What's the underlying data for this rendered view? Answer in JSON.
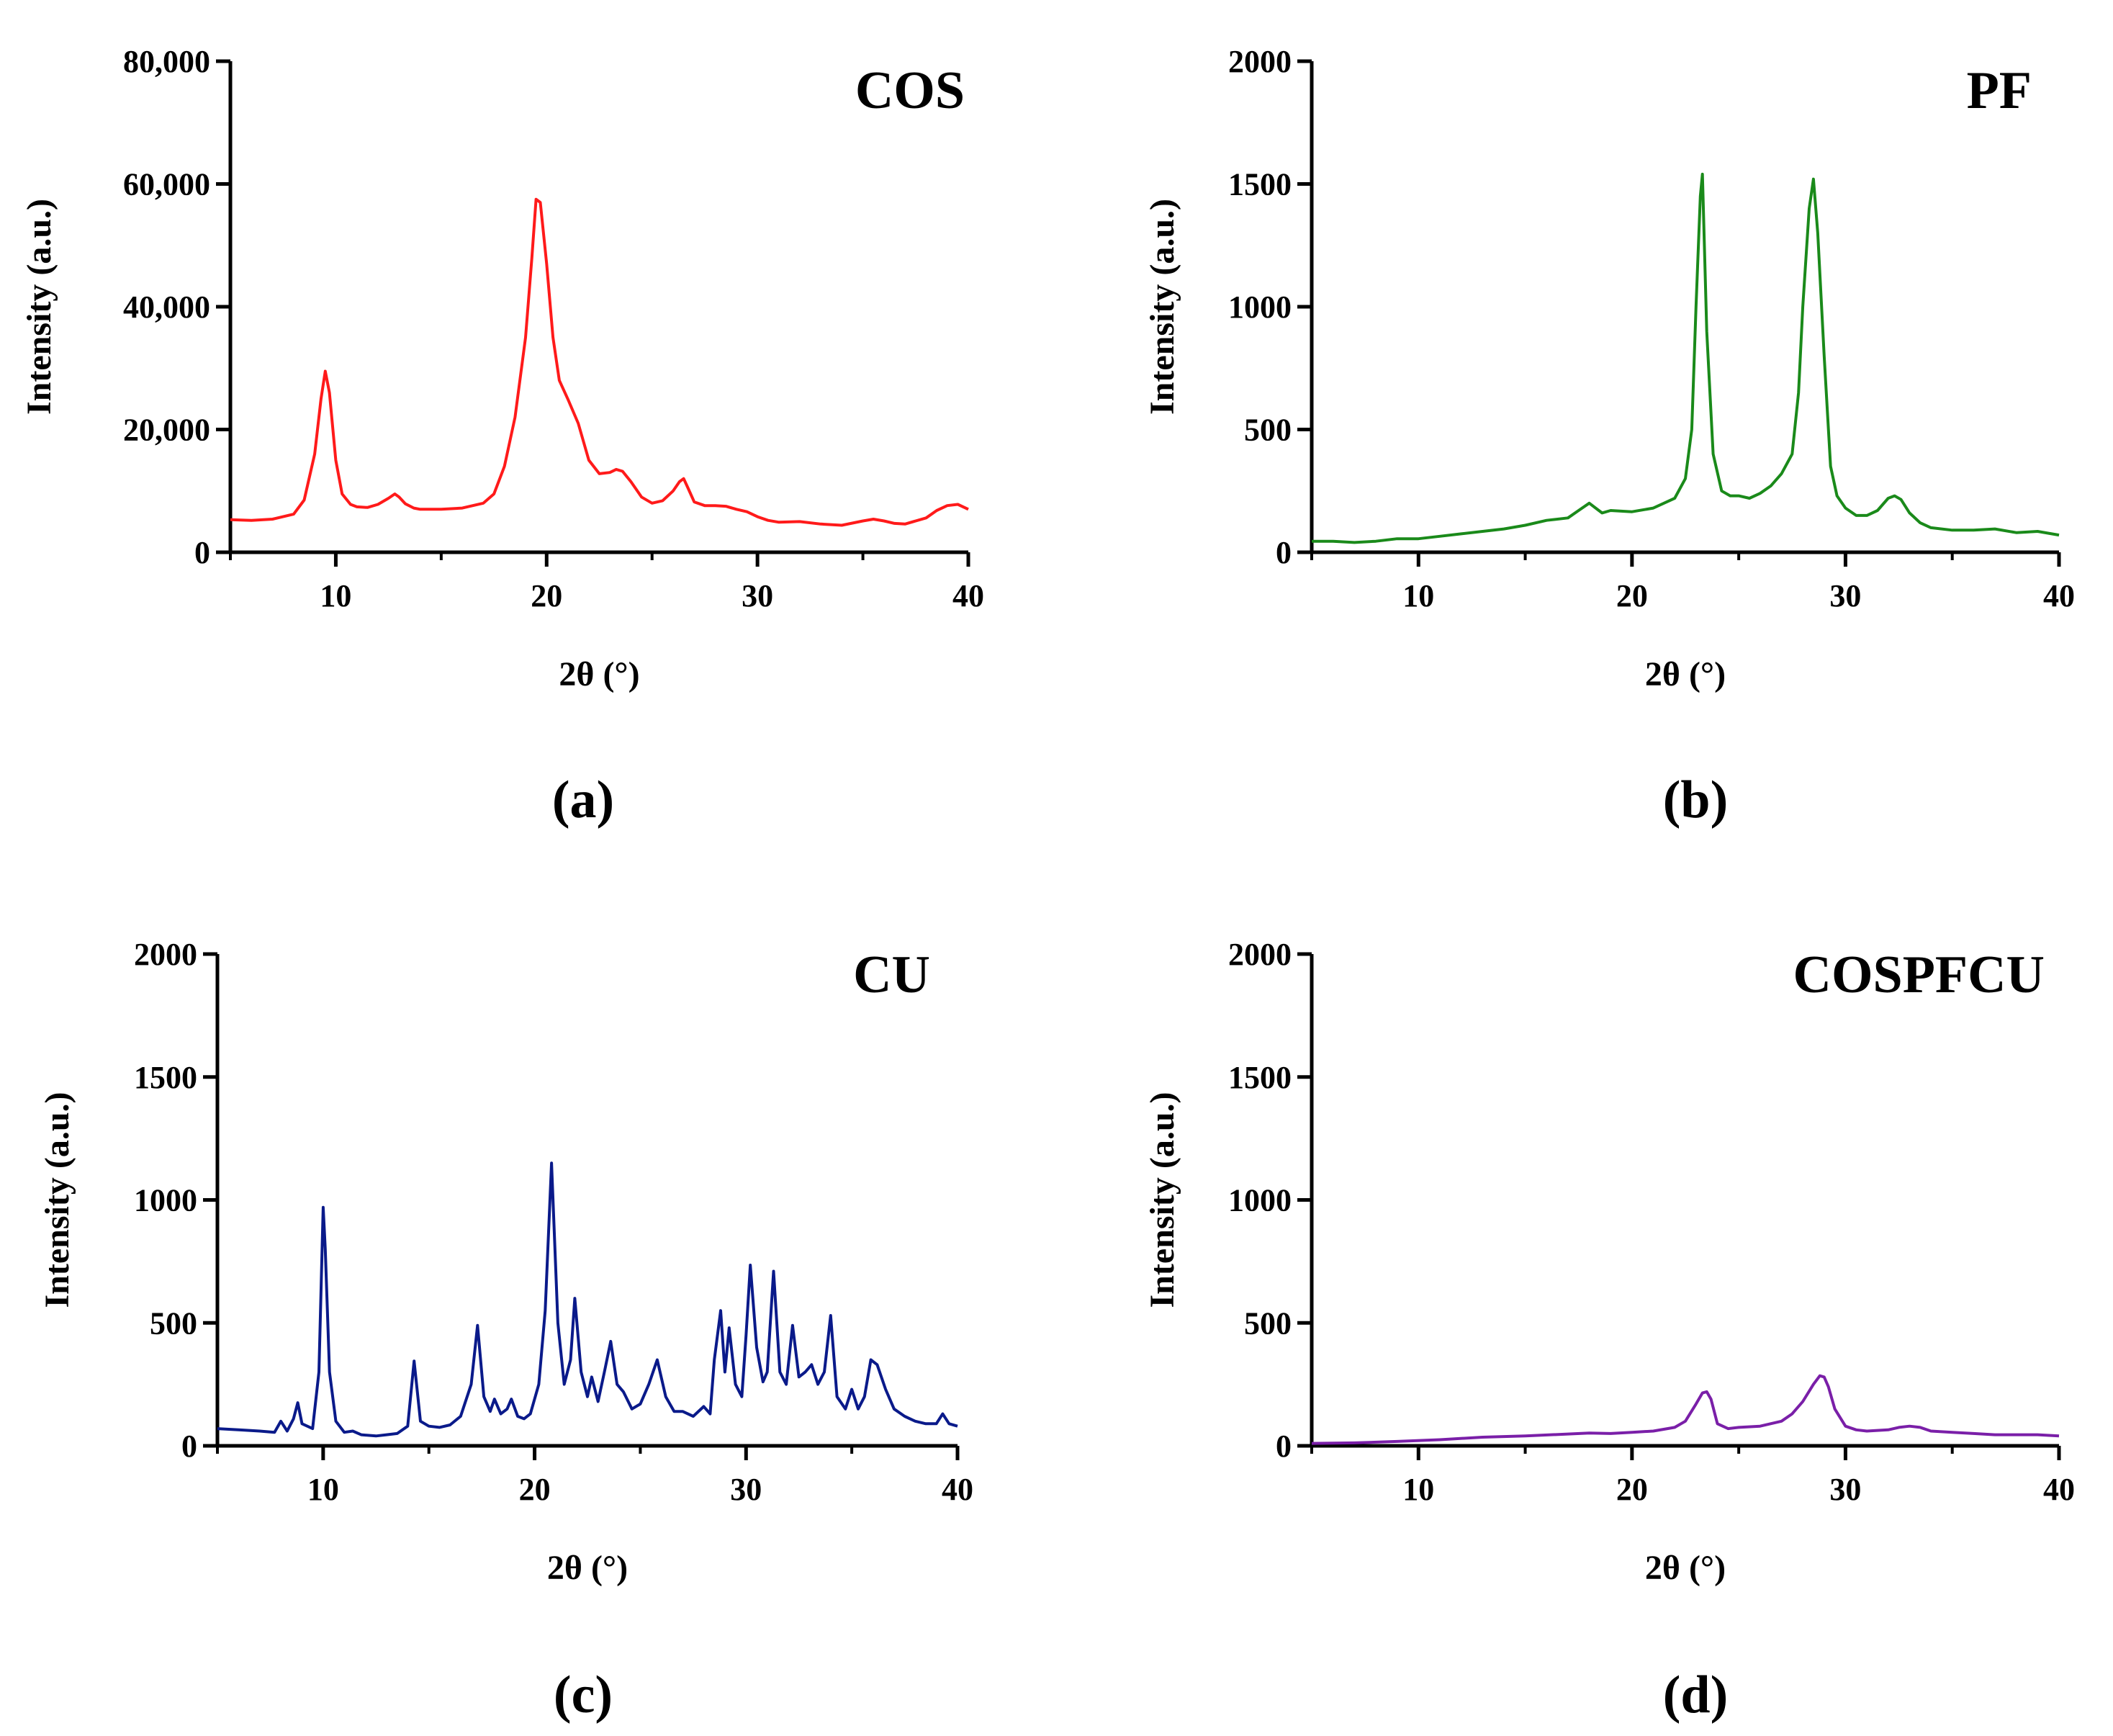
{
  "figure": {
    "panels": [
      "a",
      "b",
      "c",
      "d"
    ]
  },
  "chart_data": [
    {
      "id": "a",
      "type": "line",
      "title": "COS",
      "panel_label": "(a)",
      "xlabel": "2θ (°)",
      "ylabel": "Intensity (a.u.)",
      "xlim": [
        5,
        40
      ],
      "ylim": [
        0,
        80000
      ],
      "xticks": [
        10,
        20,
        30,
        40
      ],
      "xtick_labels": [
        "10",
        "20",
        "30",
        "40"
      ],
      "yticks": [
        0,
        20000,
        40000,
        60000,
        80000
      ],
      "ytick_labels": [
        "0",
        "20,000",
        "40,000",
        "60,000",
        "80,000"
      ],
      "color": "#ff1a1a",
      "series": [
        {
          "name": "COS",
          "x": [
            5,
            6,
            7,
            8,
            8.5,
            9,
            9.3,
            9.5,
            9.7,
            10,
            10.3,
            10.7,
            11,
            11.5,
            12,
            12.5,
            12.8,
            13,
            13.3,
            13.7,
            14,
            15,
            16,
            17,
            17.5,
            18,
            18.5,
            19,
            19.3,
            19.5,
            19.7,
            20,
            20.3,
            20.6,
            21,
            21.5,
            22,
            22.5,
            23,
            23.3,
            23.6,
            24,
            24.5,
            25,
            25.5,
            26,
            26.3,
            26.5,
            26.7,
            27,
            27.5,
            28,
            28.5,
            29,
            29.5,
            30,
            30.5,
            31,
            32,
            33,
            34,
            35,
            35.5,
            36,
            36.5,
            37,
            38,
            38.5,
            39,
            39.5,
            40
          ],
          "y": [
            5300,
            5200,
            5400,
            6200,
            8500,
            16000,
            25000,
            29500,
            26000,
            15000,
            9500,
            7800,
            7400,
            7300,
            7800,
            8800,
            9500,
            9000,
            7900,
            7200,
            7000,
            7000,
            7200,
            8000,
            9500,
            14000,
            22000,
            35000,
            48000,
            57500,
            57000,
            47000,
            35000,
            28000,
            25000,
            21000,
            15000,
            12800,
            13000,
            13500,
            13200,
            11500,
            9000,
            8000,
            8400,
            10000,
            11500,
            12000,
            10500,
            8200,
            7600,
            7600,
            7500,
            7000,
            6600,
            5800,
            5200,
            4900,
            5000,
            4600,
            4400,
            5100,
            5400,
            5100,
            4700,
            4600,
            5600,
            6800,
            7600,
            7800,
            7000
          ]
        }
      ]
    },
    {
      "id": "b",
      "type": "line",
      "title": "PF",
      "panel_label": "(b)",
      "xlabel": "2θ (°)",
      "ylabel": "Intensity (a.u.)",
      "xlim": [
        5,
        40
      ],
      "ylim": [
        0,
        2000
      ],
      "xticks": [
        10,
        20,
        30,
        40
      ],
      "xtick_labels": [
        "10",
        "20",
        "30",
        "40"
      ],
      "yticks": [
        0,
        500,
        1000,
        1500,
        2000
      ],
      "ytick_labels": [
        "0",
        "500",
        "1000",
        "1500",
        "2000"
      ],
      "color": "#1a8a1a",
      "series": [
        {
          "name": "PF",
          "x": [
            5,
            6,
            7,
            8,
            9,
            10,
            11,
            12,
            13,
            14,
            15,
            16,
            17,
            17.5,
            18,
            18.3,
            18.6,
            19,
            20,
            21,
            21.5,
            22,
            22.5,
            22.8,
            23,
            23.2,
            23.3,
            23.5,
            23.8,
            24.2,
            24.6,
            25,
            25.5,
            26,
            26.5,
            27,
            27.5,
            27.8,
            28,
            28.3,
            28.5,
            28.7,
            29,
            29.3,
            29.6,
            30,
            30.5,
            31,
            31.5,
            32,
            32.3,
            32.6,
            33,
            33.5,
            34,
            35,
            36,
            37,
            38,
            39,
            40
          ],
          "y": [
            45,
            45,
            40,
            45,
            55,
            55,
            65,
            75,
            85,
            95,
            110,
            130,
            140,
            170,
            200,
            180,
            160,
            170,
            165,
            180,
            200,
            220,
            300,
            500,
            1000,
            1450,
            1540,
            900,
            400,
            250,
            230,
            230,
            220,
            240,
            270,
            320,
            400,
            650,
            1000,
            1400,
            1520,
            1300,
            800,
            350,
            230,
            180,
            150,
            150,
            170,
            220,
            230,
            215,
            160,
            120,
            100,
            90,
            90,
            95,
            80,
            85,
            70
          ]
        }
      ]
    },
    {
      "id": "c",
      "type": "line",
      "title": "CU",
      "panel_label": "(c)",
      "xlabel": "2θ (°)",
      "ylabel": "Intensity (a.u.)",
      "xlim": [
        5,
        40
      ],
      "ylim": [
        0,
        2000
      ],
      "xticks": [
        10,
        20,
        30,
        40
      ],
      "xtick_labels": [
        "10",
        "20",
        "30",
        "40"
      ],
      "yticks": [
        0,
        500,
        1000,
        1500,
        2000
      ],
      "ytick_labels": [
        "0",
        "500",
        "1000",
        "1500",
        "2000"
      ],
      "color": "#0a1a8a",
      "series": [
        {
          "name": "CU",
          "x": [
            5,
            6,
            7,
            7.7,
            8,
            8.3,
            8.6,
            8.8,
            9,
            9.5,
            9.8,
            10,
            10.1,
            10.3,
            10.6,
            11,
            11.4,
            11.8,
            12.5,
            13,
            13.5,
            14,
            14.3,
            14.6,
            15,
            15.5,
            16,
            16.5,
            17,
            17.3,
            17.6,
            17.9,
            18.1,
            18.4,
            18.7,
            18.9,
            19.2,
            19.5,
            19.8,
            20.2,
            20.5,
            20.8,
            21.1,
            21.4,
            21.7,
            21.9,
            22.2,
            22.5,
            22.7,
            23,
            23.3,
            23.6,
            23.9,
            24.2,
            24.6,
            25,
            25.4,
            25.8,
            26.2,
            26.6,
            27,
            27.5,
            28,
            28.3,
            28.5,
            28.8,
            29,
            29.2,
            29.5,
            29.8,
            30,
            30.2,
            30.5,
            30.8,
            31,
            31.3,
            31.6,
            31.9,
            32.2,
            32.5,
            32.8,
            33.1,
            33.4,
            33.7,
            34,
            34.3,
            34.7,
            35,
            35.3,
            35.6,
            35.9,
            36.2,
            36.6,
            37,
            37.5,
            38,
            38.5,
            39,
            39.3,
            39.6,
            40
          ],
          "y": [
            70,
            65,
            60,
            55,
            100,
            60,
            110,
            175,
            90,
            70,
            300,
            970,
            800,
            300,
            100,
            55,
            60,
            45,
            40,
            45,
            50,
            80,
            345,
            100,
            80,
            75,
            85,
            120,
            250,
            490,
            200,
            140,
            190,
            130,
            150,
            190,
            120,
            110,
            130,
            250,
            550,
            1150,
            500,
            250,
            350,
            600,
            300,
            200,
            280,
            180,
            300,
            425,
            250,
            220,
            150,
            170,
            250,
            350,
            200,
            140,
            140,
            120,
            160,
            130,
            350,
            550,
            300,
            480,
            250,
            200,
            450,
            735,
            400,
            260,
            300,
            710,
            300,
            250,
            490,
            280,
            300,
            330,
            250,
            300,
            530,
            200,
            150,
            230,
            150,
            200,
            350,
            330,
            230,
            150,
            120,
            100,
            90,
            90,
            130,
            90,
            80
          ]
        }
      ]
    },
    {
      "id": "d",
      "type": "line",
      "title": "COSPFCU",
      "panel_label": "(d)",
      "xlabel": "2θ (°)",
      "ylabel": "Intensity (a.u.)",
      "xlim": [
        5,
        40
      ],
      "ylim": [
        0,
        2000
      ],
      "xticks": [
        10,
        20,
        30,
        40
      ],
      "xtick_labels": [
        "10",
        "20",
        "30",
        "40"
      ],
      "yticks": [
        0,
        500,
        1000,
        1500,
        2000
      ],
      "ytick_labels": [
        "0",
        "500",
        "1000",
        "1500",
        "2000"
      ],
      "color": "#7a1fa8",
      "series": [
        {
          "name": "COSPFCU",
          "x": [
            5,
            7,
            9,
            11,
            13,
            15,
            17,
            18,
            19,
            20,
            21,
            22,
            22.5,
            23,
            23.3,
            23.5,
            23.7,
            24,
            24.5,
            25,
            26,
            27,
            27.5,
            28,
            28.5,
            28.8,
            29,
            29.2,
            29.5,
            30,
            30.5,
            31,
            32,
            32.5,
            33,
            33.5,
            34,
            35,
            36,
            37,
            38,
            39,
            40
          ],
          "y": [
            10,
            12,
            18,
            25,
            35,
            40,
            48,
            52,
            50,
            55,
            60,
            75,
            100,
            170,
            215,
            220,
            190,
            90,
            70,
            75,
            80,
            100,
            130,
            180,
            250,
            285,
            280,
            240,
            150,
            80,
            65,
            60,
            65,
            75,
            80,
            75,
            60,
            55,
            50,
            45,
            45,
            45,
            40
          ]
        }
      ]
    }
  ]
}
